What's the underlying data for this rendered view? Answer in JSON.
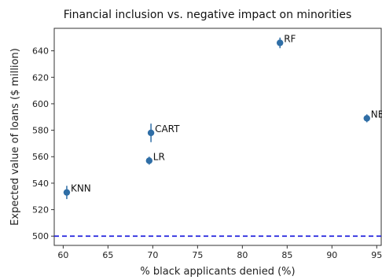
{
  "chart_data": {
    "type": "scatter",
    "title": "Financial inclusion vs. negative impact on minorities",
    "xlabel": "% black applicants denied (%)",
    "ylabel": "Expected value of loans ($ million)",
    "xlim": [
      59,
      95.5
    ],
    "ylim": [
      493,
      657
    ],
    "xticks": [
      60,
      65,
      70,
      75,
      80,
      85,
      90,
      95
    ],
    "yticks": [
      500,
      520,
      540,
      560,
      580,
      600,
      620,
      640
    ],
    "points": [
      {
        "label": "KNN",
        "x": 60.4,
        "y": 533,
        "err": 5
      },
      {
        "label": "LR",
        "x": 69.6,
        "y": 557,
        "err": 3
      },
      {
        "label": "CART",
        "x": 69.8,
        "y": 578,
        "err": 7
      },
      {
        "label": "RF",
        "x": 84.2,
        "y": 646,
        "err": 4
      },
      {
        "label": "NB",
        "x": 93.9,
        "y": 589,
        "err": 3
      }
    ],
    "reference_line": {
      "y": 500,
      "style": "dashed",
      "color": "#2222dd"
    },
    "point_color": "#2f6ea6",
    "grid": false,
    "legend": "none"
  }
}
